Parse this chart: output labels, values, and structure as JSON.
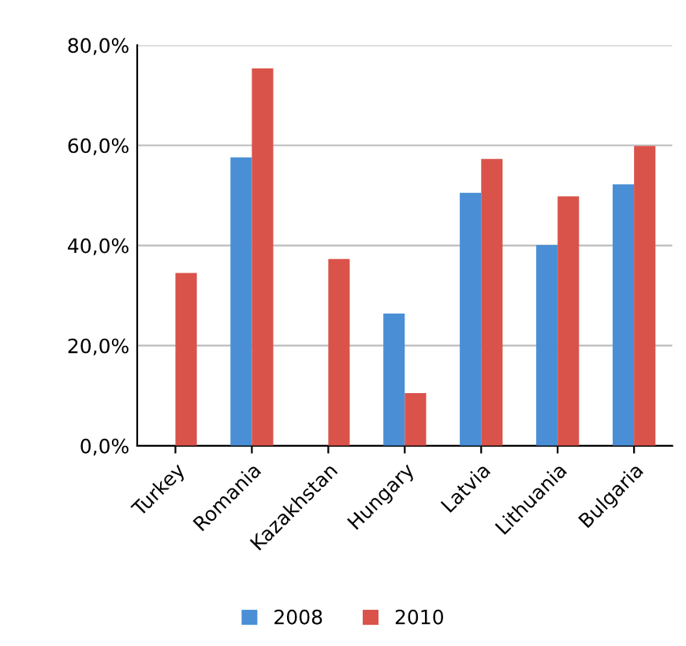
{
  "chart_data": {
    "type": "bar",
    "categories": [
      "Turkey",
      "Romania",
      "Kazakhstan",
      "Hungary",
      "Latvia",
      "Lithuania",
      "Bulgaria"
    ],
    "series": [
      {
        "name": "2008",
        "color": "#4a8fd6",
        "values": [
          null,
          57.6,
          null,
          26.4,
          50.5,
          40.1,
          52.2
        ]
      },
      {
        "name": "2010",
        "color": "#d9534a",
        "values": [
          34.5,
          75.4,
          37.3,
          10.5,
          57.3,
          49.8,
          59.9
        ]
      }
    ],
    "ylim": [
      0,
      80
    ],
    "yticks": [
      {
        "value": 0,
        "label": "0,0%"
      },
      {
        "value": 20,
        "label": "20,0%"
      },
      {
        "value": 40,
        "label": "40,0%"
      },
      {
        "value": 60,
        "label": "60,0%"
      },
      {
        "value": 80,
        "label": "80,0%"
      }
    ],
    "grid": "y",
    "legend": "bottom"
  }
}
